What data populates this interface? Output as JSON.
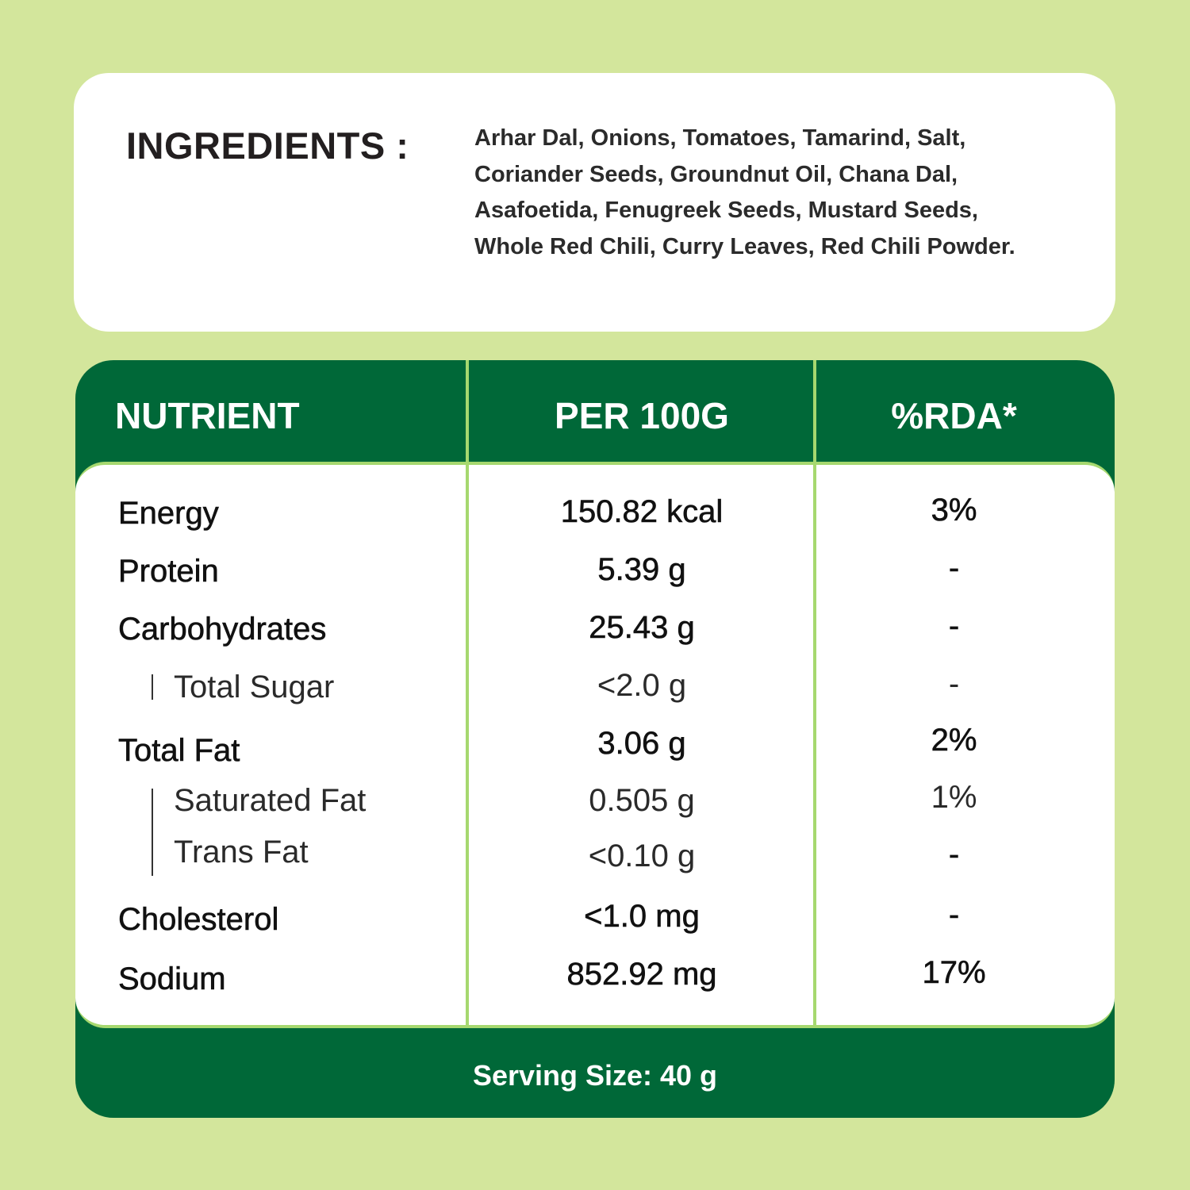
{
  "ingredients": {
    "title": "INGREDIENTS :",
    "lines": [
      "Arhar Dal, Onions, Tomatoes, Tamarind, Salt,",
      "Coriander Seeds, Groundnut Oil, Chana Dal,",
      "Asafoetida, Fenugreek Seeds, Mustard Seeds,",
      "Whole Red Chili, Curry Leaves, Red Chili Powder."
    ]
  },
  "table": {
    "headers": [
      "NUTRIENT",
      "PER 100G",
      "%RDA*"
    ],
    "rows": [
      {
        "name": "Energy",
        "value": "150.82 kcal",
        "rda": "3%",
        "sub": false
      },
      {
        "name": "Protein",
        "value": "5.39 g",
        "rda": "-",
        "sub": false
      },
      {
        "name": "Carbohydrates",
        "value": "25.43 g",
        "rda": "-",
        "sub": false
      },
      {
        "name": "Total Sugar",
        "value": "<2.0 g",
        "rda": "-",
        "sub": true
      },
      {
        "name": "Total Fat",
        "value": "3.06 g",
        "rda": "2%",
        "sub": false
      },
      {
        "name": "Saturated Fat",
        "value": "0.505 g",
        "rda": "1%",
        "sub": true
      },
      {
        "name": "Trans Fat",
        "value": "<0.10 g",
        "rda": "-",
        "sub": true
      },
      {
        "name": "Cholesterol",
        "value": "<1.0 mg",
        "rda": "-",
        "sub": false
      },
      {
        "name": "Sodium",
        "value": "852.92 mg",
        "rda": "17%",
        "sub": false
      }
    ],
    "footer": "Serving Size: 40 g"
  },
  "colors": {
    "background": "#d3e69c",
    "table_green": "#006838",
    "divider_green": "#a6d86f"
  }
}
